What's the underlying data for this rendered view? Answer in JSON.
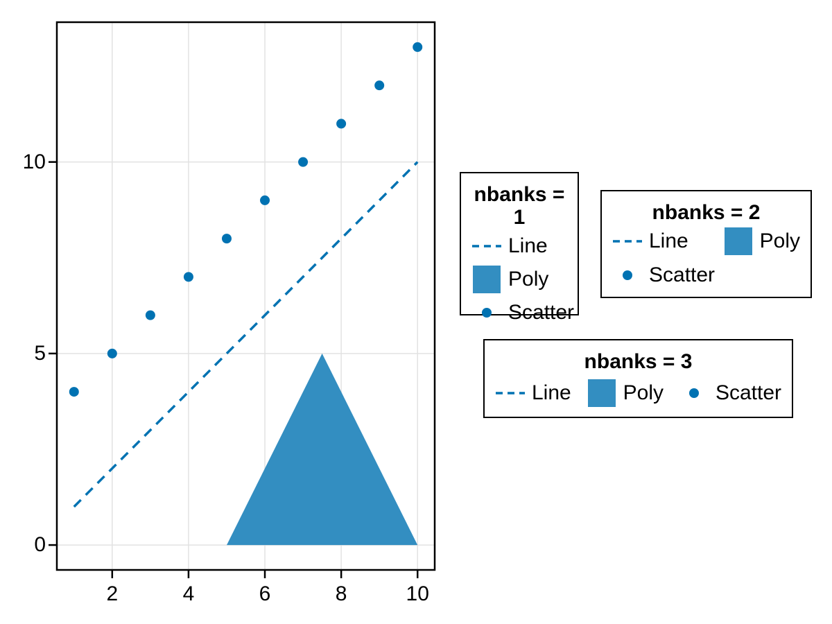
{
  "figure": {
    "background": "#ffffff"
  },
  "colors": {
    "primary_blue": "#0072B2",
    "poly_fill": "#338EC1",
    "grid": "#e2e2e2",
    "frame": "#000000",
    "text": "#000000"
  },
  "chart_data": {
    "type": "line+scatter+polygon",
    "title": "",
    "xlabel": "",
    "ylabel": "",
    "xlim": [
      0.55,
      10.45
    ],
    "ylim": [
      -0.65,
      13.65
    ],
    "xticks": [
      2,
      4,
      6,
      8,
      10
    ],
    "yticks": [
      0,
      5,
      10
    ],
    "grid": true,
    "series": [
      {
        "name": "Line",
        "type": "line",
        "linestyle": "dash",
        "color": "#0072B2",
        "x": [
          1,
          2,
          3,
          4,
          5,
          6,
          7,
          8,
          9,
          10
        ],
        "y": [
          1,
          2,
          3,
          4,
          5,
          6,
          7,
          8,
          9,
          10
        ]
      },
      {
        "name": "Scatter",
        "type": "scatter",
        "color": "#0072B2",
        "markersize": 7,
        "x": [
          1,
          2,
          3,
          4,
          5,
          6,
          7,
          8,
          9,
          10
        ],
        "y": [
          4,
          5,
          6,
          7,
          8,
          9,
          10,
          11,
          12,
          13
        ]
      },
      {
        "name": "Poly",
        "type": "polygon",
        "color": "#338EC1",
        "vertices": [
          [
            5,
            0
          ],
          [
            10,
            0
          ],
          [
            7.5,
            5
          ]
        ]
      }
    ]
  },
  "legends": [
    {
      "title": "nbanks = 1",
      "nbanks": 1,
      "entries": [
        {
          "label": "Line",
          "marker": "line"
        },
        {
          "label": "Poly",
          "marker": "poly"
        },
        {
          "label": "Scatter",
          "marker": "scatter"
        }
      ]
    },
    {
      "title": "nbanks = 2",
      "nbanks": 2,
      "entries": [
        {
          "label": "Line",
          "marker": "line"
        },
        {
          "label": "Poly",
          "marker": "poly"
        },
        {
          "label": "Scatter",
          "marker": "scatter"
        }
      ]
    },
    {
      "title": "nbanks = 3",
      "nbanks": 3,
      "entries": [
        {
          "label": "Line",
          "marker": "line"
        },
        {
          "label": "Poly",
          "marker": "poly"
        },
        {
          "label": "Scatter",
          "marker": "scatter"
        }
      ]
    }
  ]
}
